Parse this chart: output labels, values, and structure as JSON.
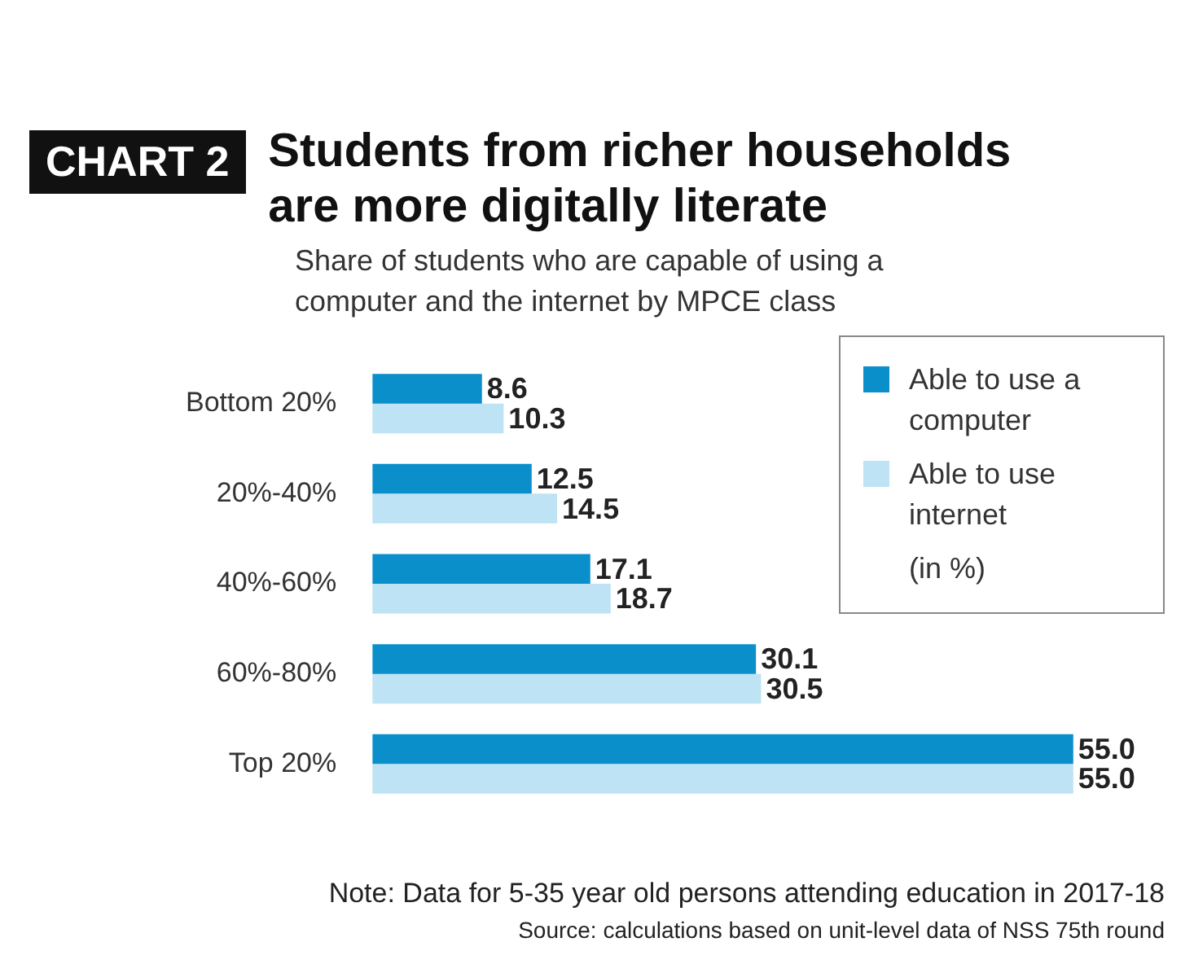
{
  "chart_data": {
    "type": "bar",
    "orientation": "horizontal",
    "title": "Students from richer households are more digitally literate",
    "subtitle": "Share of students who are capable of using a computer and the internet by MPCE class",
    "categories": [
      "Bottom 20%",
      "20%-40%",
      "40%-60%",
      "60%-80%",
      "Top 20%"
    ],
    "series": [
      {
        "name": "Able to use a computer",
        "color": "#0b8fca",
        "values": [
          8.6,
          12.5,
          17.1,
          30.1,
          55.0
        ],
        "value_labels": [
          "8.6",
          "12.5",
          "17.1",
          "30.1",
          "55.0"
        ]
      },
      {
        "name": "Able to use internet",
        "color": "#bde3f4",
        "values": [
          10.3,
          14.5,
          18.7,
          30.5,
          55.0
        ],
        "value_labels": [
          "10.3",
          "14.5",
          "18.7",
          "30.5",
          "55.0"
        ]
      }
    ],
    "legend": "right",
    "tick_labels": "y",
    "annotations": [
      "CHART 2",
      "(in %)",
      "Note: Data for 5-35 year old persons attending education in 2017-18",
      "Source: calculations based on unit-level data of NSS 75th round"
    ]
  }
}
